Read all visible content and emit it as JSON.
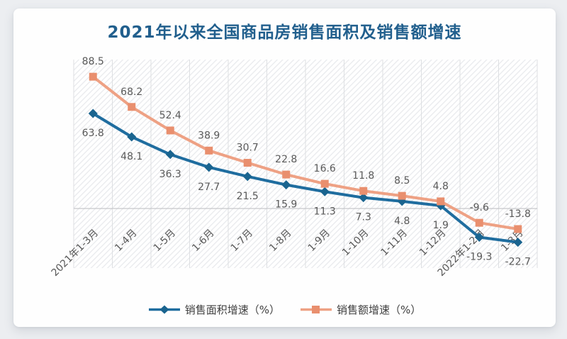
{
  "chart_data": {
    "type": "line",
    "title": "2021年以来全国商品房销售面积及销售额增速",
    "categories": [
      "2021年1-3月",
      "1-4月",
      "1-5月",
      "1-6月",
      "1-7月",
      "1-8月",
      "1-9月",
      "1-10月",
      "1-11月",
      "1-12月",
      "2022年1-2月",
      "1-3月"
    ],
    "series": [
      {
        "name": "销售面积增速（%）",
        "marker": "diamond",
        "line_color": "#1F6D9F",
        "marker_color": "#1A648F",
        "label_position": "below",
        "values": [
          63.8,
          48.1,
          36.3,
          27.7,
          21.5,
          15.9,
          11.3,
          7.3,
          4.8,
          1.9,
          -19.3,
          -22.7
        ]
      },
      {
        "name": "销售额增速（%）",
        "marker": "square",
        "line_color": "#EEA184",
        "marker_color": "#E98F6E",
        "label_position": "above",
        "values": [
          88.5,
          68.2,
          52.4,
          38.9,
          30.7,
          22.8,
          16.6,
          11.8,
          8.5,
          4.8,
          -9.6,
          -13.8
        ]
      }
    ],
    "ylim": [
      -40,
      100
    ],
    "y_axis_visible": false,
    "gridlines": "vertical-only",
    "zero_line": true,
    "x_label_rotation": -45,
    "plot_background": "diagonal-hatch",
    "legend_position": "bottom"
  },
  "colors": {
    "title": "#215F8D",
    "data_label": "#595959",
    "axis_label": "#595959",
    "gridline": "#DDDFE2",
    "zero_line": "#C6C8CB",
    "hatch_line": "#E9EAED",
    "page_background": "#ECEEF1",
    "card_background": "#FEFEFE",
    "legend_text": "#3F3F3F"
  }
}
